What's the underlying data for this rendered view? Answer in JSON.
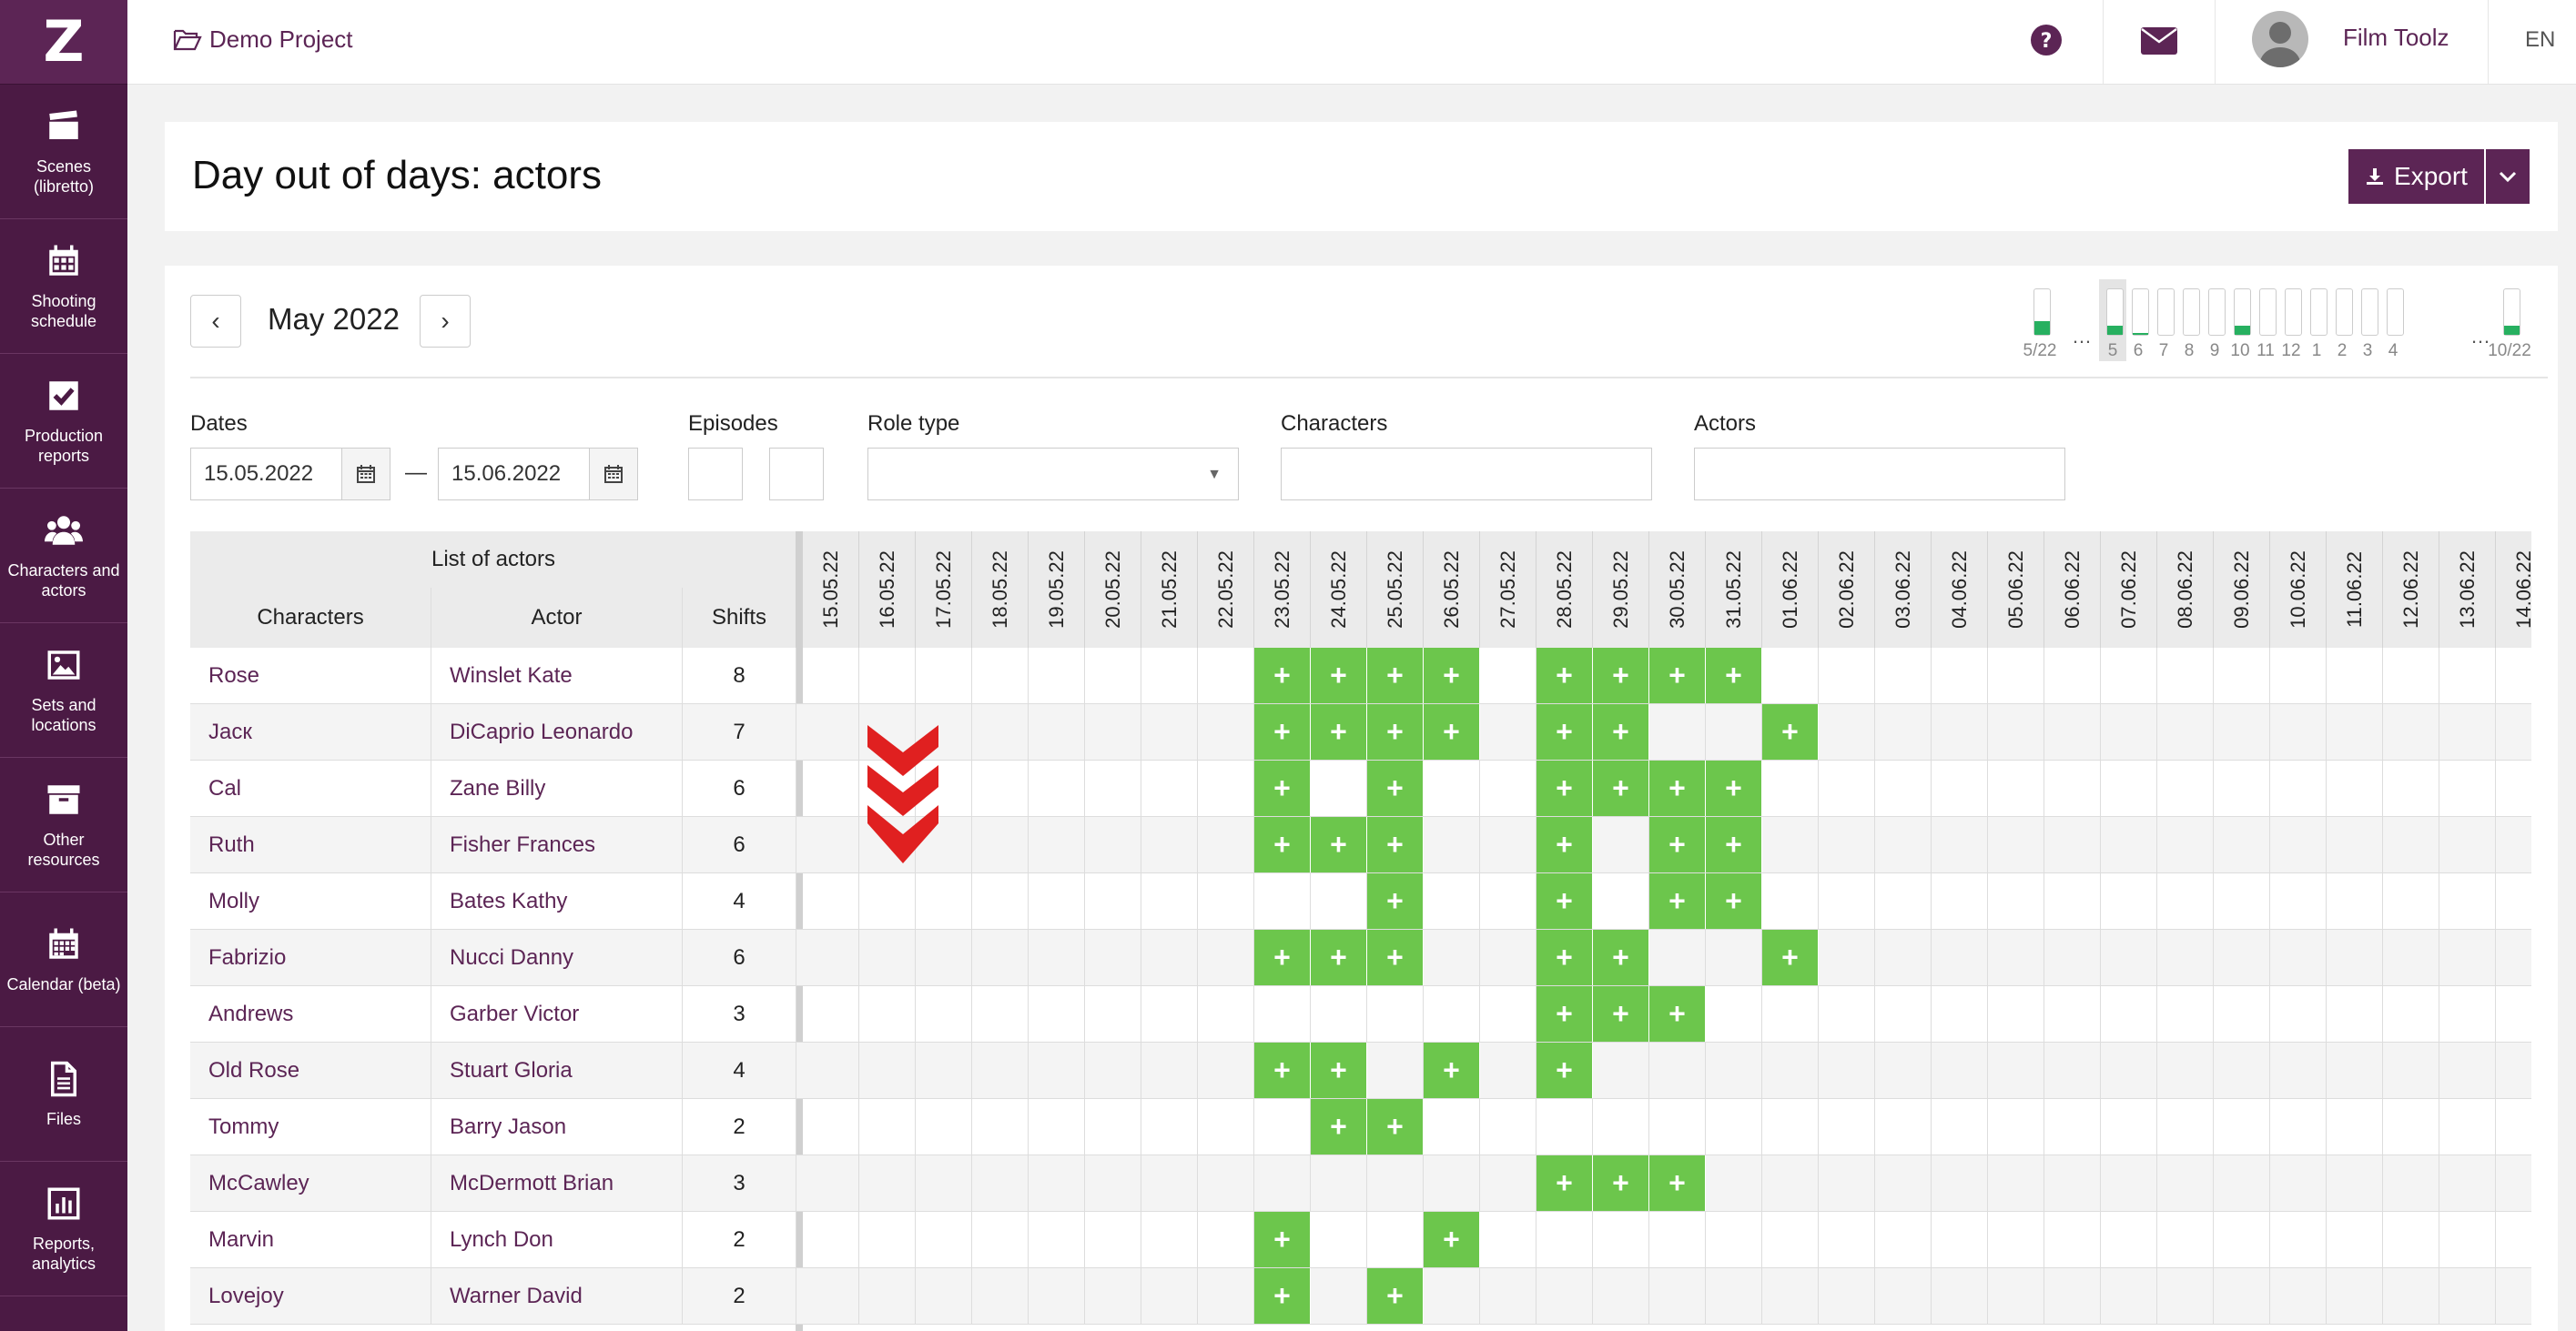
{
  "sidebar": {
    "logo": "Z",
    "items": [
      {
        "label": "Scenes (libretto)",
        "icon": "clapperboard-icon"
      },
      {
        "label": "Shooting schedule",
        "icon": "calendar-icon"
      },
      {
        "label": "Production reports",
        "icon": "checkbox-icon"
      },
      {
        "label": "Characters and actors",
        "icon": "users-icon"
      },
      {
        "label": "Sets and locations",
        "icon": "image-icon"
      },
      {
        "label": "Other resources",
        "icon": "archive-icon"
      },
      {
        "label": "Calendar (beta)",
        "icon": "calendar-grid-icon"
      },
      {
        "label": "Files",
        "icon": "file-icon"
      },
      {
        "label": "Reports, analytics",
        "icon": "bar-chart-icon"
      }
    ]
  },
  "topbar": {
    "project": "Demo Project",
    "user_name": "Film Toolz",
    "language": "EN"
  },
  "page": {
    "title": "Day out of days: actors",
    "export_label": "Export"
  },
  "calendar": {
    "month": "May 2022",
    "prev": "‹",
    "next": "›",
    "strip": [
      {
        "label": "5/22",
        "fill": 0.3,
        "selected": false
      },
      {
        "label": "5",
        "fill": 0.2,
        "selected": true
      },
      {
        "label": "6",
        "fill": 0.05,
        "selected": false
      },
      {
        "label": "7",
        "fill": 0,
        "selected": false
      },
      {
        "label": "8",
        "fill": 0,
        "selected": false
      },
      {
        "label": "9",
        "fill": 0,
        "selected": false
      },
      {
        "label": "10",
        "fill": 0.2,
        "selected": false
      },
      {
        "label": "11",
        "fill": 0,
        "selected": false
      },
      {
        "label": "12",
        "fill": 0,
        "selected": false
      },
      {
        "label": "1",
        "fill": 0,
        "selected": false
      },
      {
        "label": "2",
        "fill": 0,
        "selected": false
      },
      {
        "label": "3",
        "fill": 0,
        "selected": false
      },
      {
        "label": "4",
        "fill": 0,
        "selected": false
      },
      {
        "label": "10/22",
        "fill": 0.2,
        "selected": false
      }
    ]
  },
  "filters": {
    "dates_label": "Dates",
    "date_from": "15.05.2022",
    "date_sep": "—",
    "date_to": "15.06.2022",
    "episodes_label": "Episodes",
    "role_type_label": "Role type",
    "characters_label": "Characters",
    "actors_label": "Actors"
  },
  "table": {
    "list_title": "List of actors",
    "col_characters": "Characters",
    "col_actor": "Actor",
    "col_shifts": "Shifts",
    "plus": "+",
    "dates": [
      "15.05.22",
      "16.05.22",
      "17.05.22",
      "18.05.22",
      "19.05.22",
      "20.05.22",
      "21.05.22",
      "22.05.22",
      "23.05.22",
      "24.05.22",
      "25.05.22",
      "26.05.22",
      "27.05.22",
      "28.05.22",
      "29.05.22",
      "30.05.22",
      "31.05.22",
      "01.06.22",
      "02.06.22",
      "03.06.22",
      "04.06.22",
      "05.06.22",
      "06.06.22",
      "07.06.22",
      "08.06.22",
      "09.06.22",
      "10.06.22",
      "11.06.22",
      "12.06.22",
      "13.06.22",
      "14.06.22"
    ],
    "rows": [
      {
        "character": "Rose",
        "actor": "Winslet Kate",
        "shifts": "8",
        "days": [
          8,
          9,
          10,
          11,
          13,
          14,
          15,
          16
        ]
      },
      {
        "character": "Jacк",
        "actor": "DiCaprio Leonardo",
        "shifts": "7",
        "days": [
          8,
          9,
          10,
          11,
          13,
          14,
          17
        ]
      },
      {
        "character": "Cal",
        "actor": "Zane Billy",
        "shifts": "6",
        "days": [
          8,
          10,
          13,
          14,
          15,
          16
        ]
      },
      {
        "character": "Ruth",
        "actor": "Fisher Frances",
        "shifts": "6",
        "days": [
          8,
          9,
          10,
          13,
          15,
          16
        ]
      },
      {
        "character": "Molly",
        "actor": "Bates Kathy",
        "shifts": "4",
        "days": [
          10,
          13,
          15,
          16
        ]
      },
      {
        "character": "Fabrizio",
        "actor": "Nucci Danny",
        "shifts": "6",
        "days": [
          8,
          9,
          10,
          13,
          14,
          17
        ]
      },
      {
        "character": "Andrews",
        "actor": "Garber Victor",
        "shifts": "3",
        "days": [
          13,
          14,
          15
        ]
      },
      {
        "character": "Old Rose",
        "actor": "Stuart Gloria",
        "shifts": "4",
        "days": [
          8,
          9,
          11,
          13
        ]
      },
      {
        "character": "Tommy",
        "actor": "Barry Jason",
        "shifts": "2",
        "days": [
          9,
          10
        ]
      },
      {
        "character": "McCawley",
        "actor": "McDermott Brian",
        "shifts": "3",
        "days": [
          13,
          14,
          15
        ]
      },
      {
        "character": "Marvin",
        "actor": "Lynch Don",
        "shifts": "2",
        "days": [
          8,
          11
        ]
      },
      {
        "character": "Lovejoy",
        "actor": "Warner David",
        "shifts": "2",
        "days": [
          8,
          10
        ]
      }
    ]
  },
  "colors": {
    "brand": "#5c2555",
    "sidebar": "#4b1a44",
    "shift_on": "#6cc64c",
    "arrow": "#e02020"
  }
}
